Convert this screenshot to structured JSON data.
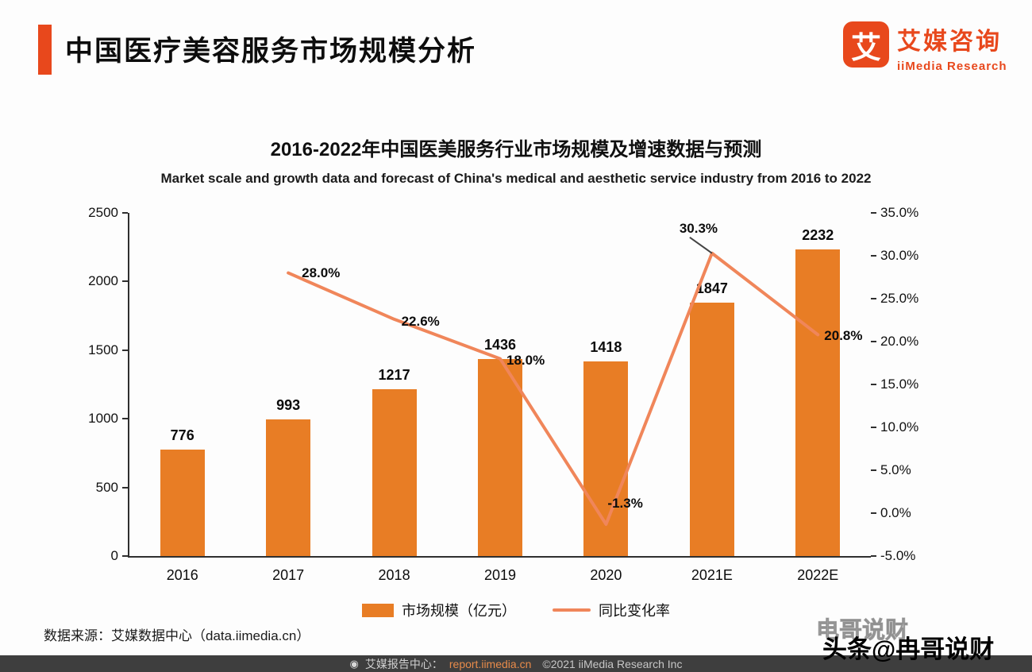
{
  "header": {
    "title": "中国医疗美容服务市场规模分析",
    "logo": {
      "icon_char": "艾",
      "brand_cn": "艾媒咨询",
      "brand_en": "iiMedia Research"
    }
  },
  "chart": {
    "title_cn": "2016-2022年中国医美服务行业市场规模及增速数据与预测",
    "title_en": "Market scale and growth data and forecast of China's medical and aesthetic service industry from 2016 to 2022"
  },
  "chart_data": {
    "type": "bar",
    "categories": [
      "2016",
      "2017",
      "2018",
      "2019",
      "2020",
      "2021E",
      "2022E"
    ],
    "series": [
      {
        "name": "市场规模（亿元）",
        "type": "bar",
        "color": "#e87d25",
        "values": [
          776,
          993,
          1217,
          1436,
          1418,
          1847,
          2232
        ],
        "labels": [
          "776",
          "993",
          "1217",
          "1436",
          "1418",
          "1847",
          "2232"
        ]
      },
      {
        "name": "同比变化率",
        "type": "line",
        "color": "#f0865a",
        "values": [
          null,
          28.0,
          22.6,
          18.0,
          -1.3,
          30.3,
          20.8
        ],
        "labels": [
          null,
          "28.0%",
          "22.6%",
          "18.0%",
          "-1.3%",
          "30.3%",
          "20.8%"
        ]
      }
    ],
    "left_axis": {
      "min": 0,
      "max": 2500,
      "ticks": [
        "2500",
        "2000",
        "1500",
        "1000",
        "500",
        "0"
      ]
    },
    "right_axis": {
      "min": -5,
      "max": 35,
      "ticks": [
        "35.0%",
        "30.0%",
        "25.0%",
        "20.0%",
        "15.0%",
        "10.0%",
        "5.0%",
        "0.0%",
        "-5.0%"
      ]
    },
    "grid": false,
    "legend_position": "bottom"
  },
  "source": "数据来源：艾媒数据中心（data.iimedia.cn）",
  "footer": {
    "icon": "◉",
    "report_center_label": "艾媒报告中心：",
    "report_url": "report.iimedia.cn",
    "copyright": "©2021  iiMedia Research  Inc"
  },
  "watermark": {
    "ghost": "电哥说财",
    "main": "头条@冉哥说财"
  }
}
